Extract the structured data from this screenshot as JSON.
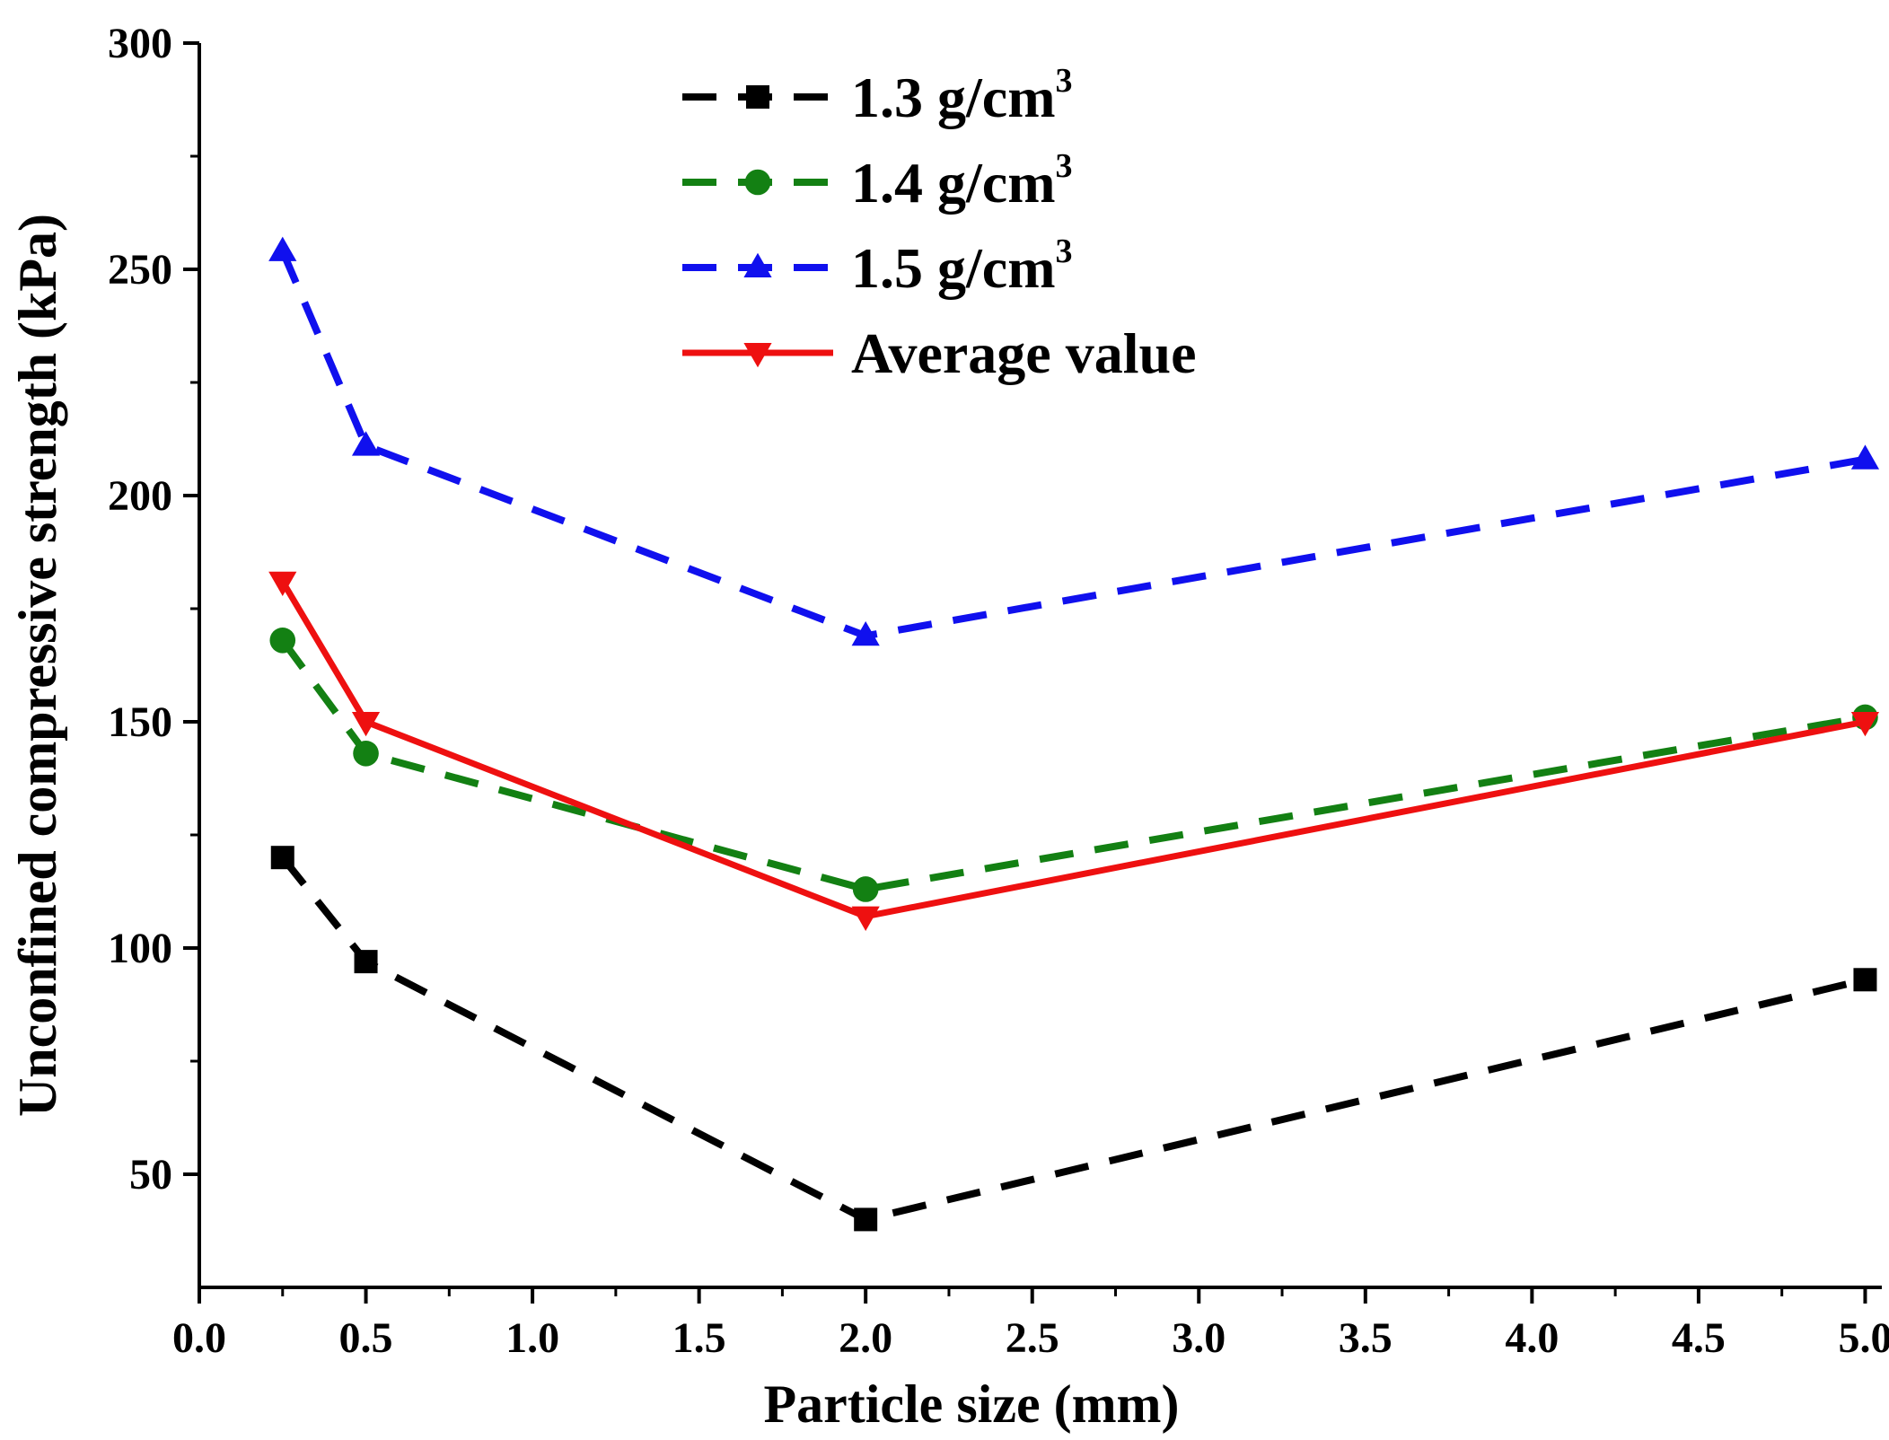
{
  "chart_data": {
    "type": "line",
    "title": "",
    "xlabel": "Particle size (mm)",
    "ylabel": "Unconfined compressive strength (kPa)",
    "xlim": [
      0.0,
      5.05
    ],
    "ylim": [
      25,
      300
    ],
    "xticks": [
      0.0,
      0.5,
      1.0,
      1.5,
      2.0,
      2.5,
      3.0,
      3.5,
      4.0,
      4.5,
      5.0
    ],
    "xtick_labels": [
      "0.0",
      "0.5",
      "1.0",
      "1.5",
      "2.0",
      "2.5",
      "3.0",
      "3.5",
      "4.0",
      "4.5",
      "5.0"
    ],
    "yticks": [
      50,
      100,
      150,
      200,
      250,
      300
    ],
    "ytick_labels": [
      "50",
      "100",
      "150",
      "200",
      "250",
      "300"
    ],
    "grid": false,
    "legend_position": "top-center",
    "x": [
      0.25,
      0.5,
      2.0,
      5.0
    ],
    "series": [
      {
        "name": "1.3 g/cm",
        "superscript": "3",
        "color": "#000000",
        "dash": "dashed",
        "marker": "square",
        "values": [
          120,
          97,
          40,
          93
        ]
      },
      {
        "name": "1.4 g/cm",
        "superscript": "3",
        "color": "#138013",
        "dash": "dashed",
        "marker": "circle",
        "values": [
          168,
          143,
          113,
          151
        ]
      },
      {
        "name": "1.5 g/cm",
        "superscript": "3",
        "color": "#1010ee",
        "dash": "dashed",
        "marker": "triangle-up",
        "values": [
          254,
          211,
          169,
          208
        ]
      },
      {
        "name": "Average value",
        "superscript": "",
        "color": "#ee1010",
        "dash": "solid",
        "marker": "triangle-down",
        "values": [
          181,
          150,
          107,
          150
        ]
      }
    ]
  }
}
